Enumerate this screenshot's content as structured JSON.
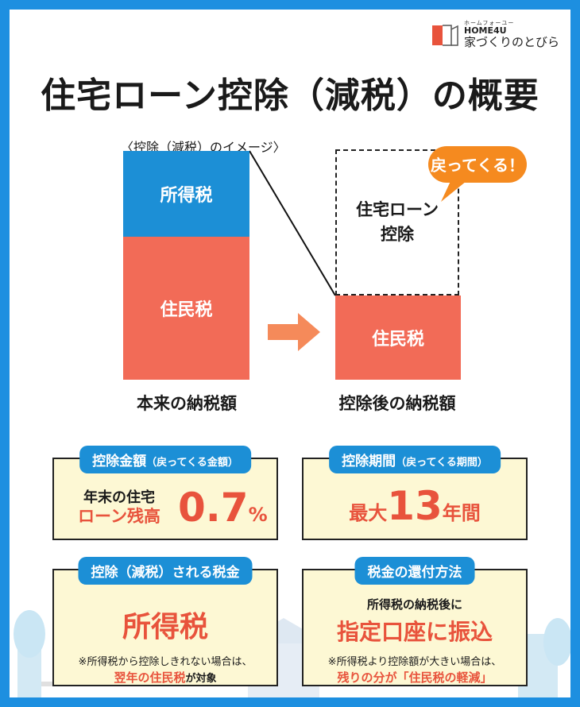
{
  "logo": {
    "ruby": "ホームフォーユー",
    "brand": "HOME4U",
    "name": "家づくりのとびら"
  },
  "title": "住宅ローン控除（減税）の概要",
  "diagram": {
    "caption": "〈控除（減税）のイメージ〉",
    "left_bar": {
      "top_label": "所得税",
      "bottom_label": "住民税",
      "caption": "本来の納税額"
    },
    "right_bar": {
      "deduction_label_line1": "住宅ローン",
      "deduction_label_line2": "控除",
      "bottom_label": "住民税",
      "caption": "控除後の納税額"
    },
    "bubble": "戻ってくる！"
  },
  "cards": {
    "amount": {
      "pill_main": "控除金額",
      "pill_sub": "（戻ってくる金額）",
      "line1": "年末の住宅",
      "line2": "ローン残高",
      "value": "0.7",
      "unit": "%"
    },
    "period": {
      "pill_main": "控除期間",
      "pill_sub": "（戻ってくる期間）",
      "prefix": "最大",
      "value": "13",
      "suffix": "年間"
    },
    "tax": {
      "pill": "控除（減税）される税金",
      "main": "所得税",
      "note1": "※所得税から控除しきれない場合は、",
      "note2_red": "翌年の住民税",
      "note2_rest": "が対象"
    },
    "refund": {
      "pill": "税金の還付方法",
      "line1": "所得税の納税後に",
      "main": "指定口座に振込",
      "note1": "※所得税より控除額が大きい場合は、",
      "note2": "残りの分が「住民税の軽減」"
    }
  },
  "colors": {
    "frame": "#1d8fe0",
    "blue": "#1c8fd6",
    "red": "#f26b57",
    "orange": "#f58a1f",
    "card_bg": "#fdf8d4"
  }
}
